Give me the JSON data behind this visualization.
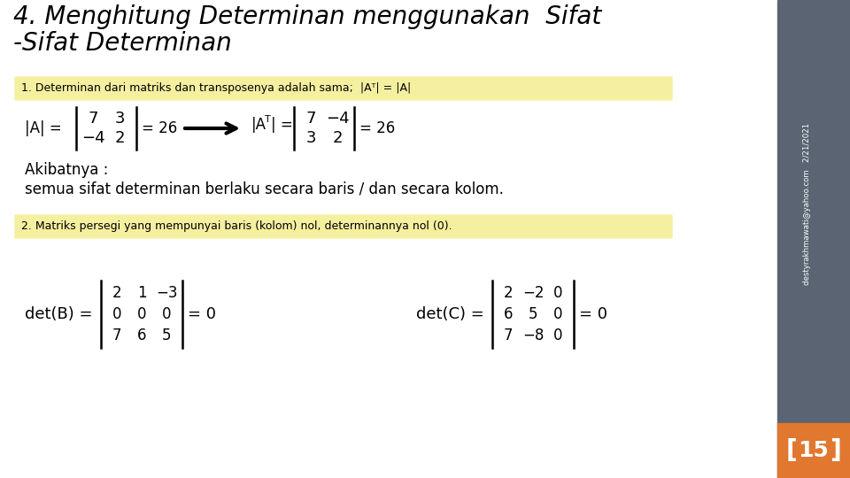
{
  "title_line1": "4. Menghitung Determinan menggunakan  Sifat",
  "title_line2": "-Sifat Determinan",
  "bg_color": "#ffffff",
  "sidebar_color": "#5a6472",
  "page_number": "15",
  "page_num_bg": "#e07830",
  "sidebar_text": "destyrakhmawati@yahoo.com   2/21/2021",
  "box1_text": "1. Determinan dari matriks dan transposenya adalah sama;  |Aᵀ| = |A|",
  "box1_bg": "#f5f0a0",
  "box2_text": "2. Matriks persegi yang mempunyai baris (kolom) nol, determinannya nol (0).",
  "box2_bg": "#f5f0a0",
  "akibatnya_line1": "Akibatnya :",
  "akibatnya_line2": "semua sifat determinan berlaku secara baris / dan secara kolom."
}
